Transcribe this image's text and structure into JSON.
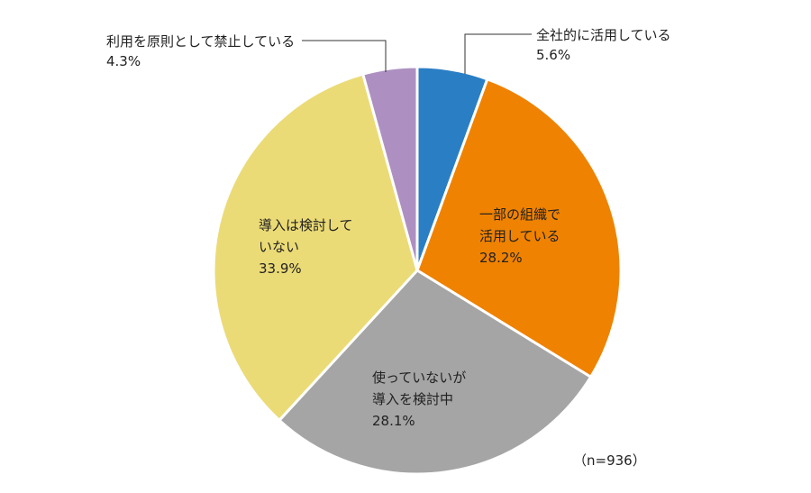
{
  "chart_data": {
    "type": "pie",
    "start_angle_deg": 0,
    "direction": "clockwise",
    "slices": [
      {
        "label_lines": [
          "全社的に活用している"
        ],
        "value_text": "5.6%",
        "value": 5.6,
        "color": "#2a7ec4"
      },
      {
        "label_lines": [
          "一部の組織で",
          "活用している"
        ],
        "value_text": "28.2%",
        "value": 28.2,
        "color": "#ef8200"
      },
      {
        "label_lines": [
          "使っていないが",
          "導入を検討中"
        ],
        "value_text": "28.1%",
        "value": 28.1,
        "color": "#a5a5a5"
      },
      {
        "label_lines": [
          "導入は検討して",
          "いない"
        ],
        "value_text": "33.9%",
        "value": 33.9,
        "color": "#ebdb76"
      },
      {
        "label_lines": [
          "利用を原則として禁止している"
        ],
        "value_text": "4.3%",
        "value": 4.3,
        "color": "#ad90c1"
      }
    ],
    "sample_note": "（n=936）"
  }
}
